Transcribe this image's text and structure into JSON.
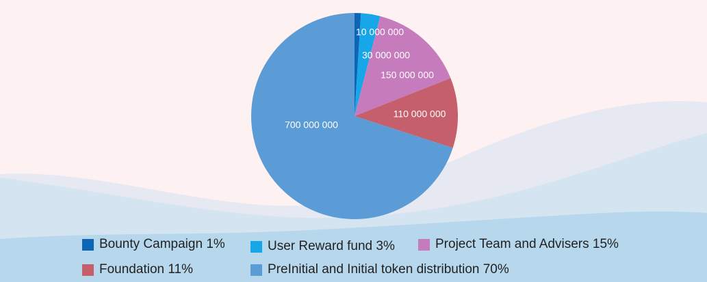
{
  "colors": {
    "page_background": "#fdf1f2",
    "wave_back": "#e6e9f2",
    "wave_mid": "#d5e4f1",
    "wave_front": "#b7d7ec"
  },
  "chart_data": {
    "type": "pie",
    "start_angle_deg": 0,
    "direction": "clockwise",
    "slices": [
      {
        "legend": "Bounty Campaign 1%",
        "value": 10000000,
        "percent": 1,
        "label": "10 000 000",
        "color": "#0c66b5"
      },
      {
        "legend": "User Reward fund 3%",
        "value": 30000000,
        "percent": 3,
        "label": "30 000 000",
        "color": "#17a6e8"
      },
      {
        "legend": "Project Team and Advisers 15%",
        "value": 150000000,
        "percent": 15,
        "label": "150 000 000",
        "color": "#c67bbd"
      },
      {
        "legend": "Foundation 11%",
        "value": 110000000,
        "percent": 11,
        "label": "110 000 000",
        "color": "#c65f6c"
      },
      {
        "legend": "PreInitial and Initial token distribution 70%",
        "value": 700000000,
        "percent": 70,
        "label": "700 000 000",
        "color": "#5b9bd6"
      }
    ],
    "legend_rows": [
      [
        "Bounty Campaign 1%",
        "User Reward fund 3%",
        "Project Team and Advisers 15%"
      ],
      [
        "Foundation 11%",
        "PreInitial and Initial token distribution 70%"
      ]
    ]
  }
}
